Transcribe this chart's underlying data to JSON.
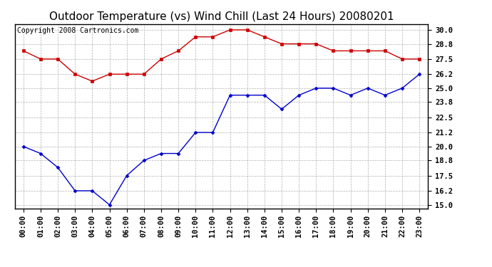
{
  "title": "Outdoor Temperature (vs) Wind Chill (Last 24 Hours) 20080201",
  "copyright": "Copyright 2008 Cartronics.com",
  "hours": [
    "00:00",
    "01:00",
    "02:00",
    "03:00",
    "04:00",
    "05:00",
    "06:00",
    "07:00",
    "08:00",
    "09:00",
    "10:00",
    "11:00",
    "12:00",
    "13:00",
    "14:00",
    "15:00",
    "16:00",
    "17:00",
    "18:00",
    "19:00",
    "20:00",
    "21:00",
    "22:00",
    "23:00"
  ],
  "outdoor_temp": [
    28.2,
    27.5,
    27.5,
    26.2,
    25.6,
    26.2,
    26.2,
    26.2,
    27.5,
    28.2,
    29.4,
    29.4,
    30.0,
    30.0,
    29.4,
    28.8,
    28.8,
    28.8,
    28.2,
    28.2,
    28.2,
    28.2,
    27.5,
    27.5
  ],
  "wind_chill": [
    20.0,
    19.4,
    18.2,
    16.2,
    16.2,
    15.0,
    17.5,
    18.8,
    19.4,
    19.4,
    21.2,
    21.2,
    24.4,
    24.4,
    24.4,
    23.2,
    24.4,
    25.0,
    25.0,
    24.4,
    25.0,
    24.4,
    25.0,
    26.2
  ],
  "temp_color": "#cc0000",
  "chill_color": "#0000cc",
  "bg_color": "#ffffff",
  "grid_color": "#b0b0b0",
  "yticks": [
    15.0,
    16.2,
    17.5,
    18.8,
    20.0,
    21.2,
    22.5,
    23.8,
    25.0,
    26.2,
    27.5,
    28.8,
    30.0
  ],
  "ylim": [
    14.7,
    30.5
  ],
  "title_fontsize": 11,
  "tick_fontsize": 7.5,
  "copyright_fontsize": 7
}
